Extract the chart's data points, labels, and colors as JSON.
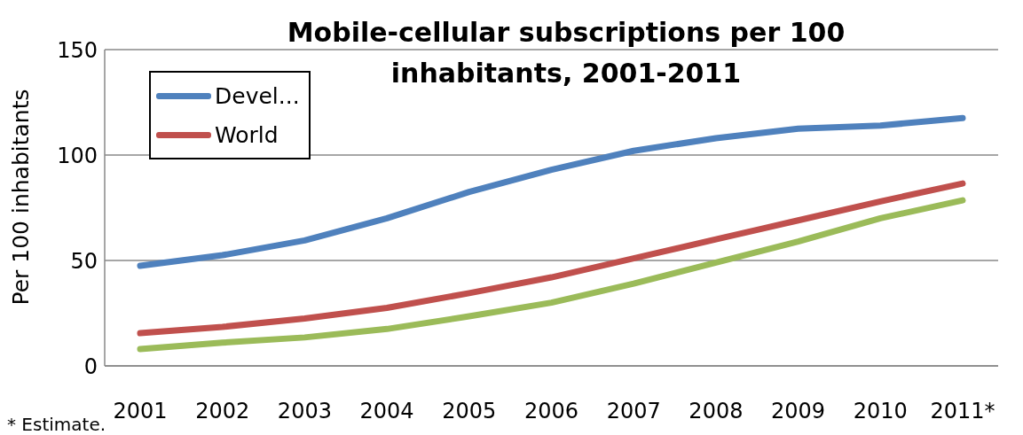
{
  "chart_data": {
    "type": "line",
    "title": "Mobile-cellular subscriptions per 100 inhabitants, 2001-2011",
    "ylabel": "Per 100 inhabitants",
    "categories": [
      "2001",
      "2002",
      "2003",
      "2004",
      "2005",
      "2006",
      "2007",
      "2008",
      "2009",
      "2010",
      "2011*"
    ],
    "series": [
      {
        "name": "Devel...",
        "color": "#4f81bd",
        "values": [
          47.5,
          52.5,
          59.5,
          70,
          82.5,
          93,
          102,
          108,
          112.5,
          114,
          117.5
        ]
      },
      {
        "name": "World",
        "color": "#c0504d",
        "values": [
          15.5,
          18.5,
          22.5,
          27.5,
          34.5,
          42,
          51,
          60,
          69,
          78,
          86.5
        ]
      },
      {
        "color": "#9bbb59",
        "values": [
          8,
          11,
          13.5,
          17.5,
          23.5,
          30,
          39,
          49,
          59,
          70,
          78.5
        ]
      }
    ],
    "ylim": [
      0,
      150
    ],
    "yticks": [
      0,
      50,
      100,
      150
    ],
    "grid": "y",
    "legend": "top left",
    "marker": "none",
    "line_style": "solid",
    "annotations": [
      "* Estimate."
    ]
  }
}
